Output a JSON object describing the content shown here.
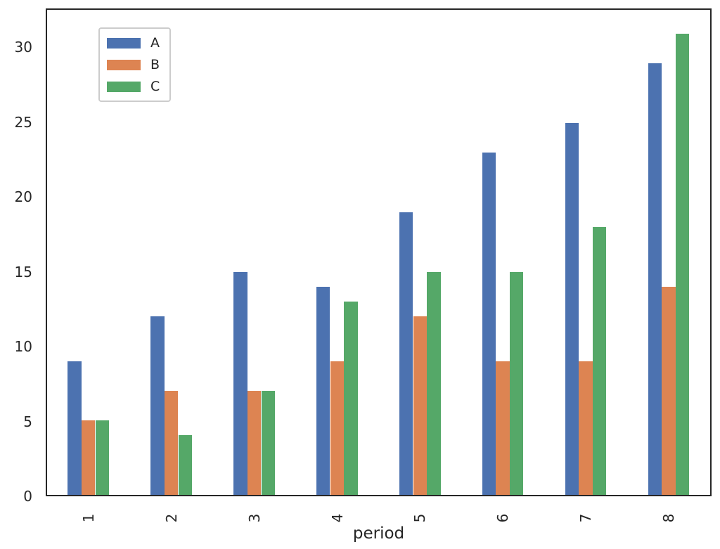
{
  "chart_data": {
    "type": "bar",
    "title": "",
    "xlabel": "period",
    "ylabel": "",
    "categories": [
      "1",
      "2",
      "3",
      "4",
      "5",
      "6",
      "7",
      "8"
    ],
    "series": [
      {
        "name": "A",
        "color": "#4C72B0",
        "values": [
          9,
          12,
          15,
          14,
          19,
          23,
          25,
          29
        ]
      },
      {
        "name": "B",
        "color": "#DD8452",
        "values": [
          5,
          7,
          7,
          9,
          12,
          9,
          9,
          14
        ]
      },
      {
        "name": "C",
        "color": "#55A868",
        "values": [
          5,
          4,
          7,
          13,
          15,
          15,
          18,
          31
        ]
      }
    ],
    "ylim": [
      0,
      32.6
    ],
    "yticks": [
      0,
      5,
      10,
      15,
      20,
      25,
      30
    ],
    "grid": false,
    "legend_position": "upper-left",
    "x_tick_rotation": -90
  },
  "colors": {
    "spine": "#262626",
    "text": "#262626",
    "legend_border": "#cccccc",
    "background": "#ffffff"
  }
}
